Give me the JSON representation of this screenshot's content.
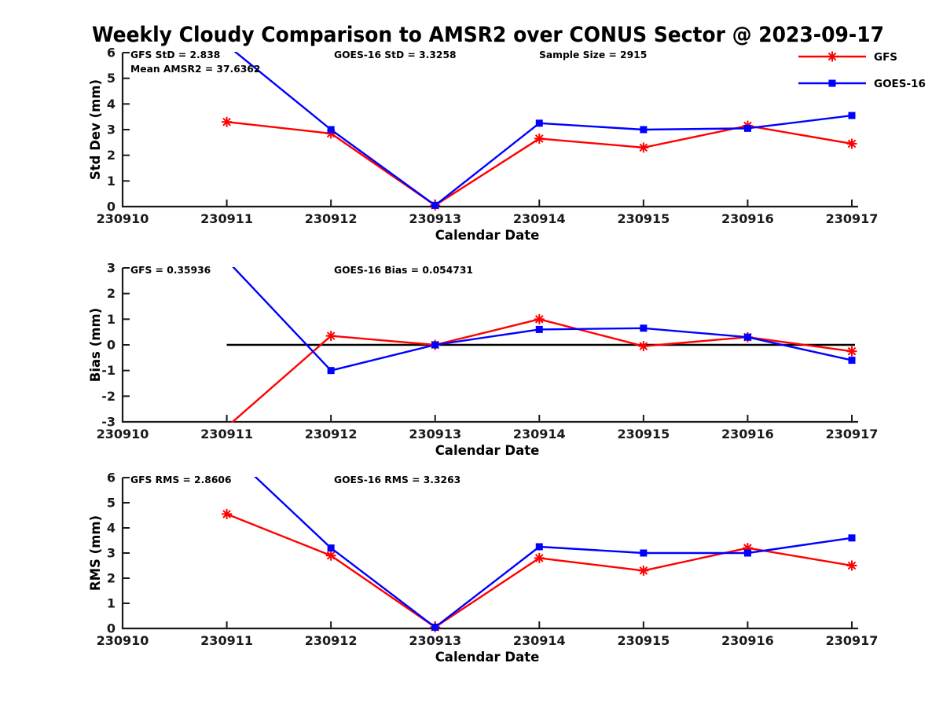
{
  "title": "Weekly Cloudy Comparison to AMSR2 over CONUS Sector @ 2023-09-17",
  "colors": {
    "gfs": "#ff0000",
    "goes16": "#0000ff",
    "axis": "#1a1a1a",
    "zero_line": "#000000",
    "background": "#ffffff"
  },
  "legend": {
    "position": "top-right",
    "entries": [
      {
        "label": "GFS",
        "color": "#ff0000",
        "marker": "asterisk"
      },
      {
        "label": "GOES-16",
        "color": "#0000ff",
        "marker": "square"
      }
    ]
  },
  "chart_data": [
    {
      "type": "line",
      "ylabel": "Std Dev (mm)",
      "xlabel": "Calendar Date",
      "ylim": [
        0,
        6
      ],
      "yticks": [
        6,
        5,
        4,
        3,
        2,
        1,
        0
      ],
      "grid": false,
      "categories": [
        "230910",
        "230911",
        "230912",
        "230913",
        "230914",
        "230915",
        "230916",
        "230917"
      ],
      "x": [
        "230911",
        "230912",
        "230913",
        "230914",
        "230915",
        "230916",
        "230917"
      ],
      "series": [
        {
          "name": "GFS",
          "color": "#ff0000",
          "marker": "asterisk",
          "values": [
            3.3,
            2.85,
            0.05,
            2.65,
            2.3,
            3.15,
            2.45
          ]
        },
        {
          "name": "GOES-16",
          "color": "#0000ff",
          "marker": "square",
          "values": [
            6.3,
            3.0,
            0.05,
            3.25,
            3.0,
            3.05,
            3.55
          ]
        }
      ],
      "annotations": [
        {
          "text": "GFS StD = 2.838",
          "slot": "left"
        },
        {
          "text": "Mean AMSR2 = 37.6362",
          "slot": "left2"
        },
        {
          "text": "GOES-16 StD = 3.3258",
          "slot": "center"
        },
        {
          "text": "Sample Size = 2915",
          "slot": "right"
        }
      ],
      "zero_line": false
    },
    {
      "type": "line",
      "ylabel": "Bias (mm)",
      "xlabel": "Calendar Date",
      "ylim": [
        -3,
        3
      ],
      "yticks": [
        3,
        2,
        1,
        0,
        -1,
        -2,
        -3
      ],
      "grid": false,
      "categories": [
        "230910",
        "230911",
        "230912",
        "230913",
        "230914",
        "230915",
        "230916",
        "230917"
      ],
      "x": [
        "230911",
        "230912",
        "230913",
        "230914",
        "230915",
        "230916",
        "230917"
      ],
      "series": [
        {
          "name": "GFS",
          "color": "#ff0000",
          "marker": "asterisk",
          "values": [
            -3.2,
            0.35,
            0.0,
            1.0,
            -0.05,
            0.3,
            -0.25
          ]
        },
        {
          "name": "GOES-16",
          "color": "#0000ff",
          "marker": "square",
          "values": [
            3.3,
            -1.0,
            0.0,
            0.6,
            0.65,
            0.3,
            -0.6
          ]
        }
      ],
      "annotations": [
        {
          "text": "GFS = 0.35936",
          "slot": "left"
        },
        {
          "text": "GOES-16 Bias  = 0.054731",
          "slot": "center"
        }
      ],
      "zero_line": true
    },
    {
      "type": "line",
      "ylabel": "RMS (mm)",
      "xlabel": "Calendar Date",
      "ylim": [
        0,
        6
      ],
      "yticks": [
        6,
        5,
        4,
        3,
        2,
        1,
        0
      ],
      "grid": false,
      "categories": [
        "230910",
        "230911",
        "230912",
        "230913",
        "230914",
        "230915",
        "230916",
        "230917"
      ],
      "x": [
        "230911",
        "230912",
        "230913",
        "230914",
        "230915",
        "230916",
        "230917"
      ],
      "series": [
        {
          "name": "GFS",
          "color": "#ff0000",
          "marker": "asterisk",
          "values": [
            4.55,
            2.9,
            0.05,
            2.8,
            2.3,
            3.2,
            2.5
          ]
        },
        {
          "name": "GOES-16",
          "color": "#0000ff",
          "marker": "square",
          "values": [
            7.1,
            3.2,
            0.05,
            3.25,
            3.0,
            3.0,
            3.6
          ]
        }
      ],
      "annotations": [
        {
          "text": "GFS RMS = 2.8606",
          "slot": "left"
        },
        {
          "text": "GOES-16 RMS = 3.3263",
          "slot": "center"
        }
      ],
      "zero_line": false
    }
  ]
}
